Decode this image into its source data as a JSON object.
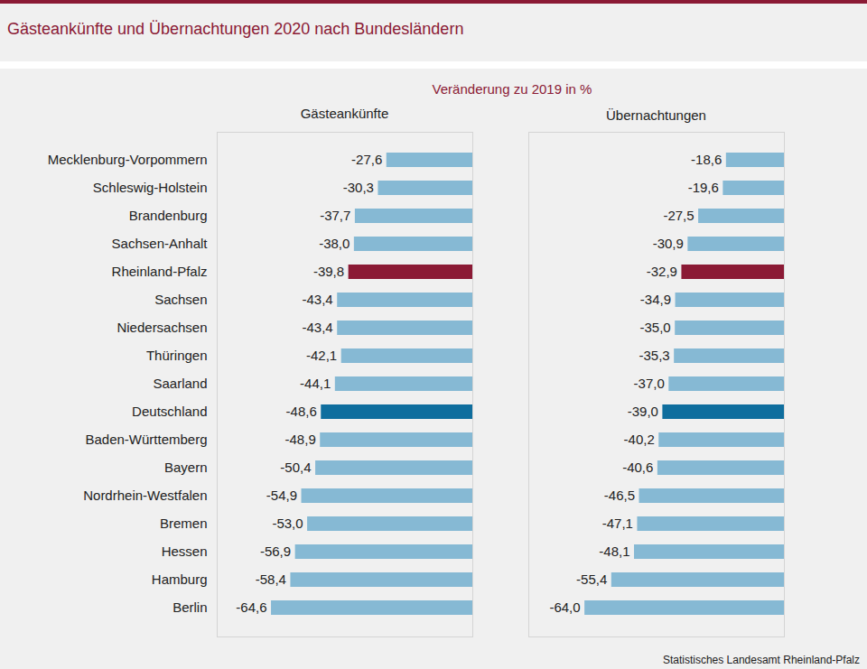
{
  "title": "Gästeankünfte und Übernachtungen 2020 nach Bundesländern",
  "subtitle": "Veränderung zu 2019 in %",
  "caption": "Statistisches Landesamt Rheinland-Pfalz",
  "chart_data": [
    {
      "type": "bar",
      "title": "Gästeankünfte",
      "orientation": "horizontal",
      "categories": [
        "Mecklenburg-Vorpommern",
        "Schleswig-Holstein",
        "Brandenburg",
        "Sachsen-Anhalt",
        "Rheinland-Pfalz",
        "Sachsen",
        "Niedersachsen",
        "Thüringen",
        "Saarland",
        "Deutschland",
        "Baden-Württemberg",
        "Bayern",
        "Nordrhein-Westfalen",
        "Bremen",
        "Hessen",
        "Hamburg",
        "Berlin"
      ],
      "values": [
        -27.6,
        -30.3,
        -37.7,
        -38.0,
        -39.8,
        -43.4,
        -43.4,
        -42.1,
        -44.1,
        -48.6,
        -48.9,
        -50.4,
        -54.9,
        -53.0,
        -56.9,
        -58.4,
        -64.6
      ],
      "value_labels": [
        "-27,6",
        "-30,3",
        "-37,7",
        "-38,0",
        "-39,8",
        "-43,4",
        "-43,4",
        "-42,1",
        "-44,1",
        "-48,6",
        "-48,9",
        "-50,4",
        "-54,9",
        "-53,0",
        "-56,9",
        "-58,4",
        "-64,6"
      ],
      "colors": [
        "#86b9d4",
        "#86b9d4",
        "#86b9d4",
        "#86b9d4",
        "#8b1a35",
        "#86b9d4",
        "#86b9d4",
        "#86b9d4",
        "#86b9d4",
        "#0f6e9e",
        "#86b9d4",
        "#86b9d4",
        "#86b9d4",
        "#86b9d4",
        "#86b9d4",
        "#86b9d4",
        "#86b9d4"
      ],
      "xlim": [
        -82,
        0
      ],
      "xticks": [],
      "data_labels": true,
      "tick_labels": "y"
    },
    {
      "type": "bar",
      "title": "Übernachtungen",
      "orientation": "horizontal",
      "categories": [
        "Mecklenburg-Vorpommern",
        "Schleswig-Holstein",
        "Brandenburg",
        "Sachsen-Anhalt",
        "Rheinland-Pfalz",
        "Sachsen",
        "Niedersachsen",
        "Thüringen",
        "Saarland",
        "Deutschland",
        "Baden-Württemberg",
        "Bayern",
        "Nordrhein-Westfalen",
        "Bremen",
        "Hessen",
        "Hamburg",
        "Berlin"
      ],
      "values": [
        -18.6,
        -19.6,
        -27.5,
        -30.9,
        -32.9,
        -34.9,
        -35.0,
        -35.3,
        -37.0,
        -39.0,
        -40.2,
        -40.6,
        -46.5,
        -47.1,
        -48.1,
        -55.4,
        -64.0
      ],
      "value_labels": [
        "-18,6",
        "-19,6",
        "-27,5",
        "-30,9",
        "-32,9",
        "-34,9",
        "-35,0",
        "-35,3",
        "-37,0",
        "-39,0",
        "-40,2",
        "-40,6",
        "-46,5",
        "-47,1",
        "-48,1",
        "-55,4",
        "-64,0"
      ],
      "colors": [
        "#86b9d4",
        "#86b9d4",
        "#86b9d4",
        "#86b9d4",
        "#8b1a35",
        "#86b9d4",
        "#86b9d4",
        "#86b9d4",
        "#86b9d4",
        "#0f6e9e",
        "#86b9d4",
        "#86b9d4",
        "#86b9d4",
        "#86b9d4",
        "#86b9d4",
        "#86b9d4",
        "#86b9d4"
      ],
      "xlim": [
        -82,
        0
      ],
      "xticks": [],
      "data_labels": true,
      "tick_labels": false
    }
  ]
}
